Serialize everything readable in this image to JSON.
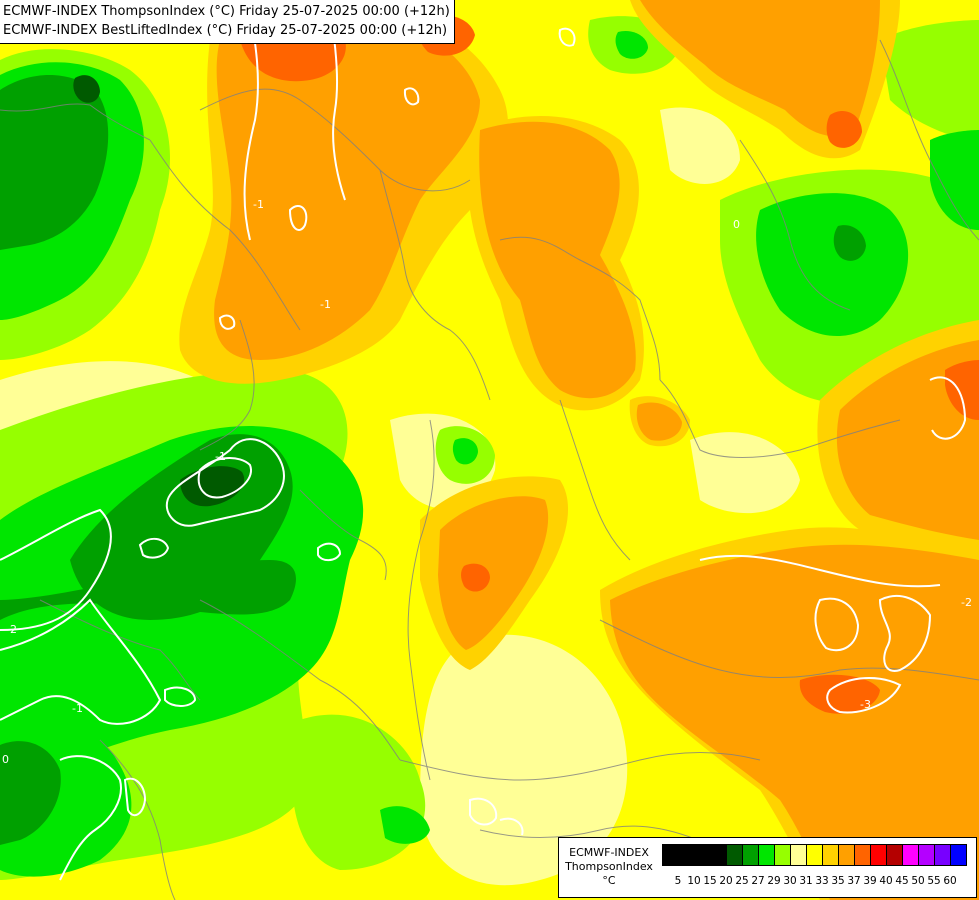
{
  "titles": {
    "line1": "ECMWF-INDEX ThompsonIndex (°C) Friday 25-07-2025 00:00 (+12h)",
    "line2": "ECMWF-INDEX BestLiftedIndex (°C) Friday 25-07-2025 00:00 (+12h)"
  },
  "legend": {
    "model": "ECMWF-INDEX",
    "variable": "ThompsonIndex",
    "unit": "°C",
    "classes": [
      {
        "value": "5",
        "color": "#000000"
      },
      {
        "value": "10",
        "color": "#000000"
      },
      {
        "value": "15",
        "color": "#000000"
      },
      {
        "value": "20",
        "color": "#000000"
      },
      {
        "value": "25",
        "color": "#005a00"
      },
      {
        "value": "27",
        "color": "#00a000"
      },
      {
        "value": "29",
        "color": "#00e600"
      },
      {
        "value": "30",
        "color": "#96ff00"
      },
      {
        "value": "31",
        "color": "#ffff96"
      },
      {
        "value": "33",
        "color": "#ffff00"
      },
      {
        "value": "35",
        "color": "#ffd200"
      },
      {
        "value": "37",
        "color": "#ffa000"
      },
      {
        "value": "39",
        "color": "#ff6400"
      },
      {
        "value": "40",
        "color": "#ff0000"
      },
      {
        "value": "45",
        "color": "#b40000"
      },
      {
        "value": "50",
        "color": "#ff00ff"
      },
      {
        "value": "55",
        "color": "#b400ff"
      },
      {
        "value": "60",
        "color": "#7800ff"
      },
      {
        "value": "",
        "color": "#0000ff"
      }
    ]
  },
  "contour_labels": [
    "-2",
    "-1",
    "-3",
    "0",
    "-2",
    "-1",
    "-1",
    "-1",
    "0"
  ]
}
